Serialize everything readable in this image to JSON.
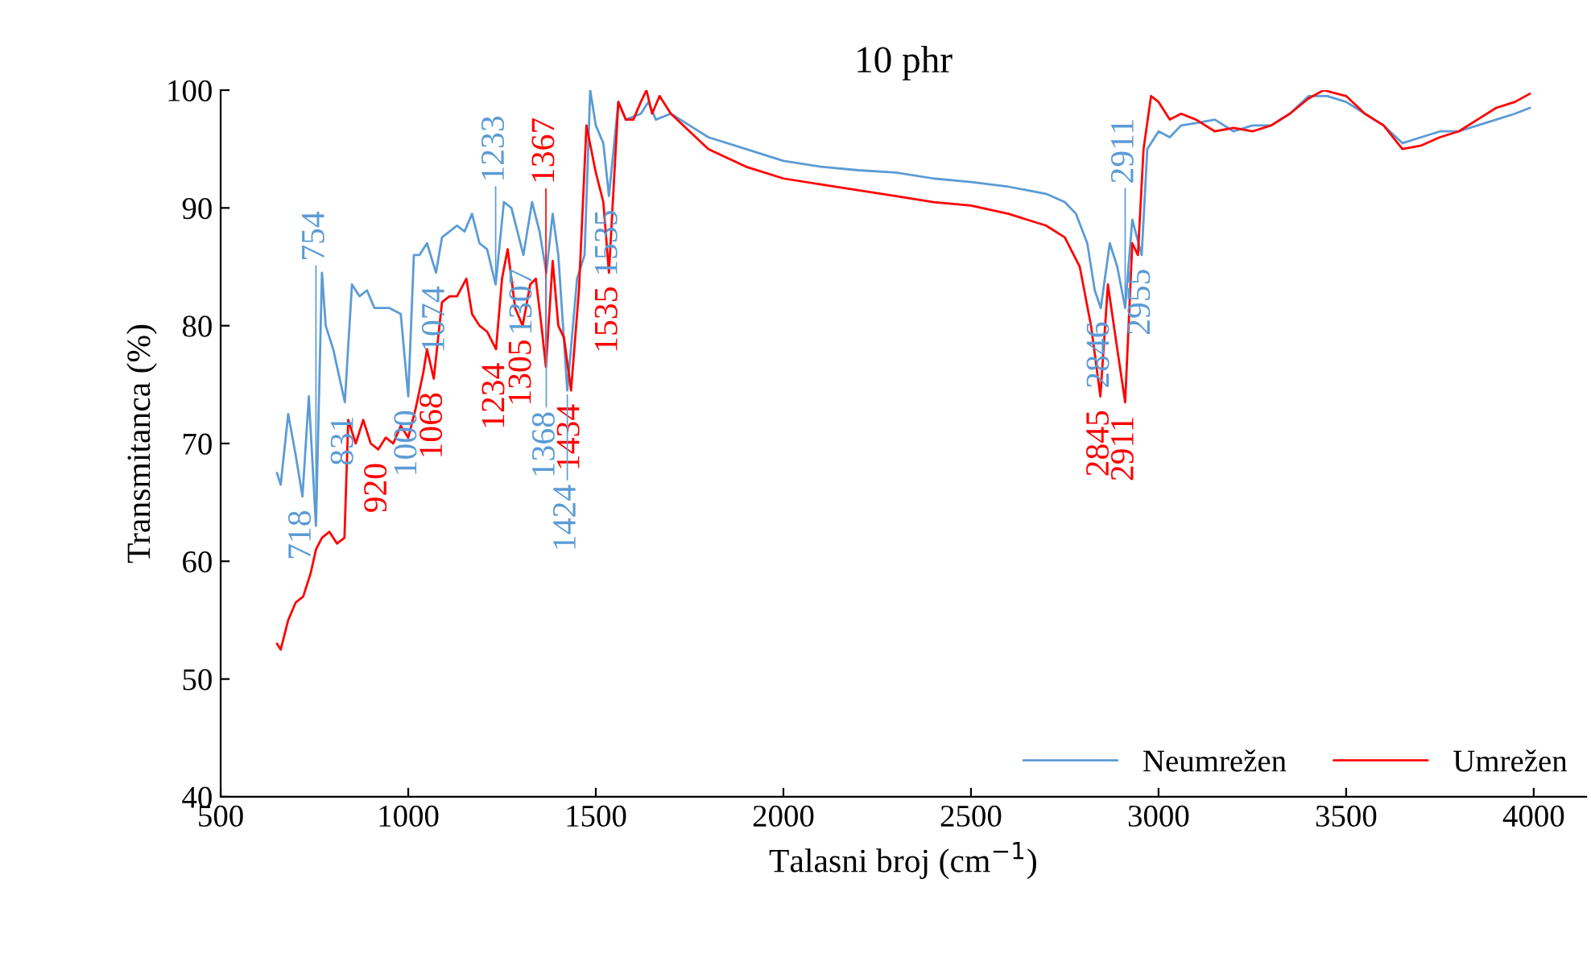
{
  "chart_data": {
    "type": "line",
    "title": "10 phr",
    "xlabel": "Talasni broj (cm$^{−1}$)",
    "ylabel": "Transmitanca (%)",
    "xlim": [
      500,
      4140
    ],
    "xticks": [
      500,
      1000,
      1500,
      2000,
      2500,
      3000,
      3500,
      4000
    ],
    "ylim": [
      40,
      100
    ],
    "yticks": [
      40,
      50,
      60,
      70,
      80,
      90,
      100
    ],
    "grid": false,
    "legend": "bottom right",
    "marker": "none",
    "line_style": "solid",
    "series": [
      {
        "name": "Neumrežen",
        "color": "#5b9bd5",
        "x": [
          650,
          660,
          680,
          700,
          718,
          735,
          754,
          770,
          780,
          800,
          831,
          850,
          870,
          890,
          910,
          950,
          980,
          1000,
          1015,
          1030,
          1050,
          1074,
          1090,
          1110,
          1130,
          1150,
          1170,
          1190,
          1210,
          1233,
          1255,
          1275,
          1307,
          1330,
          1350,
          1368,
          1385,
          1400,
          1424,
          1450,
          1470,
          1485,
          1500,
          1520,
          1535,
          1560,
          1580,
          1620,
          1640,
          1660,
          1700,
          1750,
          1800,
          1900,
          2000,
          2100,
          2200,
          2300,
          2400,
          2500,
          2600,
          2700,
          2750,
          2780,
          2810,
          2830,
          2846,
          2870,
          2890,
          2911,
          2930,
          2955,
          2970,
          3000,
          3030,
          3060,
          3100,
          3150,
          3200,
          3250,
          3300,
          3350,
          3400,
          3450,
          3500,
          3550,
          3600,
          3650,
          3700,
          3750,
          3800,
          3850,
          3900,
          3950,
          3990
        ],
        "values": [
          67.5,
          66.5,
          72.5,
          69,
          65.5,
          74,
          63,
          84.5,
          80,
          78,
          73.5,
          83.5,
          82.5,
          83,
          81.5,
          81.5,
          81,
          74,
          86,
          86,
          87,
          84.5,
          87.5,
          88,
          88.5,
          88,
          89.5,
          87,
          86.5,
          83.5,
          90.5,
          90,
          86,
          90.5,
          88,
          84.5,
          89.5,
          86,
          74.5,
          84,
          86,
          100,
          97,
          95.5,
          91,
          99,
          97.5,
          98,
          99,
          97.5,
          98,
          97,
          96,
          95,
          94,
          93.5,
          93.2,
          93,
          92.5,
          92.2,
          91.8,
          91.2,
          90.5,
          89.5,
          87,
          83,
          81.5,
          87,
          85,
          81.5,
          89,
          86,
          95,
          96.5,
          96,
          97,
          97.2,
          97.5,
          96.5,
          97,
          97,
          98,
          99.5,
          99.5,
          99,
          98,
          97,
          95.5,
          96,
          96.5,
          96.5,
          97,
          97.5,
          98,
          98.5
        ]
      },
      {
        "name": "Umrežen",
        "color": "#ff0000",
        "x": [
          650,
          660,
          680,
          700,
          720,
          740,
          754,
          770,
          790,
          810,
          830,
          840,
          860,
          880,
          900,
          920,
          940,
          960,
          980,
          1000,
          1020,
          1040,
          1050,
          1068,
          1090,
          1110,
          1130,
          1155,
          1170,
          1190,
          1210,
          1234,
          1250,
          1265,
          1285,
          1305,
          1325,
          1340,
          1355,
          1367,
          1385,
          1400,
          1415,
          1434,
          1455,
          1475,
          1500,
          1520,
          1535,
          1560,
          1580,
          1600,
          1620,
          1635,
          1650,
          1670,
          1700,
          1750,
          1800,
          1900,
          2000,
          2100,
          2200,
          2300,
          2400,
          2500,
          2600,
          2700,
          2750,
          2790,
          2820,
          2845,
          2865,
          2890,
          2911,
          2930,
          2945,
          2960,
          2980,
          3000,
          3030,
          3060,
          3100,
          3150,
          3200,
          3250,
          3300,
          3350,
          3400,
          3440,
          3500,
          3550,
          3600,
          3650,
          3700,
          3750,
          3800,
          3850,
          3900,
          3950,
          3990
        ],
        "values": [
          53,
          52.5,
          55,
          56.5,
          57,
          59,
          61,
          62,
          62.5,
          61.5,
          62,
          72,
          70,
          72,
          70,
          69.5,
          70.5,
          70,
          71.5,
          70.5,
          73,
          76,
          78,
          75.5,
          82,
          82.5,
          82.5,
          84,
          81,
          80,
          79.5,
          78,
          84,
          86.5,
          81.5,
          80,
          83.5,
          84,
          80,
          76.5,
          85.5,
          80,
          79,
          74.5,
          83,
          97,
          93,
          90.5,
          84.5,
          99,
          97.5,
          97.5,
          99,
          100,
          98,
          99.5,
          98,
          96.5,
          95,
          93.5,
          92.5,
          92,
          91.5,
          91,
          90.5,
          90.2,
          89.5,
          88.5,
          87.5,
          85,
          80,
          74,
          83.5,
          78,
          73.5,
          87,
          86,
          95,
          99.5,
          99,
          97.5,
          98,
          97.5,
          96.5,
          96.8,
          96.5,
          97,
          98,
          99.3,
          100,
          99.5,
          98,
          97,
          95,
          95.3,
          96,
          96.5,
          97.5,
          98.5,
          99,
          99.7
        ]
      }
    ],
    "annotations": [
      {
        "text": "920",
        "x": 920,
        "y": 69.5
      },
      {
        "text": "1068",
        "x": 1068,
        "y": 75.5
      },
      {
        "text": "1234",
        "x": 1234,
        "y": 78
      },
      {
        "text": "1305",
        "x": 1305,
        "y": 80
      },
      {
        "text": "1367",
        "x": 1367,
        "y": 76.5
      },
      {
        "text": "1434",
        "x": 1434,
        "y": 74.5
      },
      {
        "text": "1535",
        "x": 1535,
        "y": 84.5
      },
      {
        "text": "2845",
        "x": 2845,
        "y": 74
      },
      {
        "text": "2911",
        "x": 2911,
        "y": 73.5
      },
      {
        "text": "718",
        "x": 718,
        "y": 65.5
      },
      {
        "text": "754",
        "x": 754,
        "y": 63
      },
      {
        "text": "831",
        "x": 831,
        "y": 73.5
      },
      {
        "text": "1000",
        "x": 1000,
        "y": 74
      },
      {
        "text": "1074",
        "x": 1074,
        "y": 84.5
      },
      {
        "text": "1233",
        "x": 1233,
        "y": 83.5
      },
      {
        "text": "1307",
        "x": 1307,
        "y": 86
      },
      {
        "text": "1368",
        "x": 1368,
        "y": 84.5
      },
      {
        "text": "1424",
        "x": 1424,
        "y": 74.5
      },
      {
        "text": "1535",
        "x": 1535,
        "y": 91
      },
      {
        "text": "2846",
        "x": 2846,
        "y": 81.5
      },
      {
        "text": "2911",
        "x": 2911,
        "y": 81.5
      },
      {
        "text": "2955",
        "x": 2955,
        "y": 86
      }
    ]
  }
}
